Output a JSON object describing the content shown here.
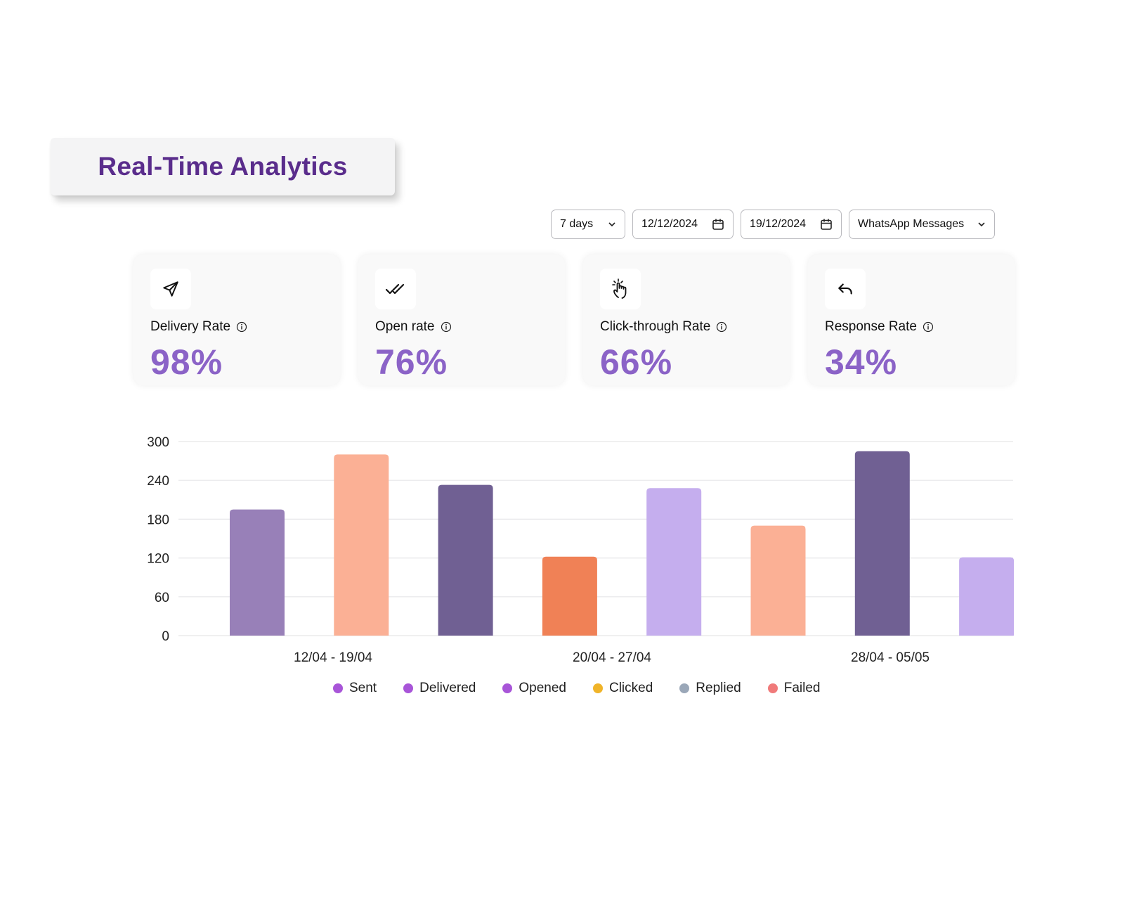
{
  "title": "Real-Time Analytics",
  "filters": {
    "range": "7 days",
    "start_date": "12/12/2024",
    "end_date": "19/12/2024",
    "channel": "WhatsApp Messages"
  },
  "metrics": [
    {
      "label": "Delivery Rate",
      "value": "98%",
      "icon": "send-icon"
    },
    {
      "label": "Open rate",
      "value": "76%",
      "icon": "double-check-icon"
    },
    {
      "label": "Click-through Rate",
      "value": "66%",
      "icon": "click-hand-icon"
    },
    {
      "label": "Response Rate",
      "value": "34%",
      "icon": "reply-icon"
    }
  ],
  "chart_data": {
    "type": "bar",
    "ylim": [
      0,
      300
    ],
    "yticks": [
      "0",
      "60",
      "120",
      "180",
      "240",
      "300"
    ],
    "categories": [
      "12/04 - 19/04",
      "20/04 - 27/04",
      "28/04 - 05/05"
    ],
    "bars": [
      {
        "value": 195,
        "color": "#9880b8"
      },
      {
        "value": 280,
        "color": "#fbb095"
      },
      {
        "value": 233,
        "color": "#706093"
      },
      {
        "value": 122,
        "color": "#f08156"
      },
      {
        "value": 228,
        "color": "#c5aeee"
      },
      {
        "value": 170,
        "color": "#fbb095"
      },
      {
        "value": 285,
        "color": "#706093"
      },
      {
        "value": 121,
        "color": "#c5aeee"
      }
    ],
    "legend": [
      {
        "name": "Sent",
        "color": "#a855d8"
      },
      {
        "name": "Delivered",
        "color": "#a855d8"
      },
      {
        "name": "Opened",
        "color": "#a855d8"
      },
      {
        "name": "Clicked",
        "color": "#f0b429"
      },
      {
        "name": "Replied",
        "color": "#9aa7b8"
      },
      {
        "name": "Failed",
        "color": "#f07a7a"
      }
    ]
  }
}
